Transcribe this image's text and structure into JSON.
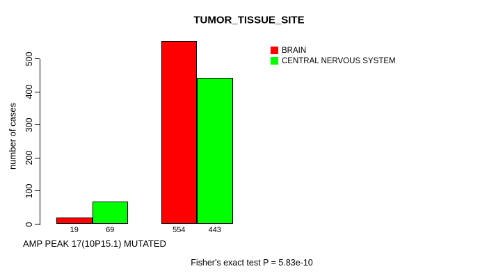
{
  "chart_data": {
    "type": "bar",
    "title": "TUMOR_TISSUE_SITE",
    "ylabel": "number of cases",
    "xlabel": "AMP PEAK 17(10P15.1) MUTATED",
    "annotation": "Fisher's exact test P = 5.83e-10",
    "series": [
      {
        "name": "BRAIN",
        "color": "#ff0000",
        "values": [
          19,
          554
        ]
      },
      {
        "name": "CENTRAL NERVOUS SYSTEM",
        "color": "#00ff00",
        "values": [
          69,
          443
        ]
      }
    ],
    "yticks": [
      0,
      100,
      200,
      300,
      400,
      500
    ],
    "ylim": [
      0,
      500
    ],
    "grid": false,
    "legend_position": "top-right",
    "background": "#ffffff",
    "axis_color": "#000000"
  }
}
